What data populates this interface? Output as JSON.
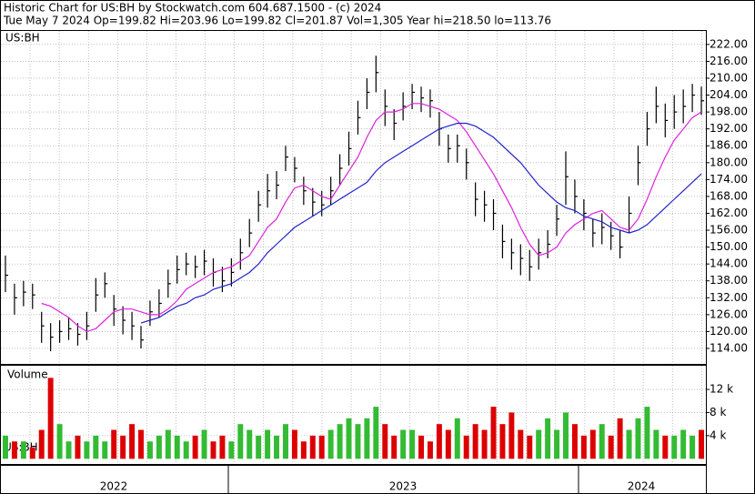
{
  "chart_data": {
    "type": "ohlc",
    "header": [
      "Historic Chart for US:BH by Stockwatch.com 604.687.1500 - (c) 2024",
      "Tue May  7 2024  Op=199.82  Hi=203.96  Lo=199.82  Cl=201.87  Vol=1,305  Year hi=218.50  lo=113.76"
    ],
    "symbol": "US:BH",
    "volume_label": "Volume",
    "x_labels": [
      "2022",
      "2023",
      "2024"
    ],
    "bar_color": "#000000",
    "up_color": "#33bb33",
    "down_color": "#dd0000",
    "grid": true,
    "high": [
      147,
      137,
      138,
      137,
      127,
      123,
      124,
      125,
      123,
      127,
      139,
      141,
      133,
      129,
      127,
      122,
      131,
      135,
      142,
      147,
      148,
      147,
      149,
      146,
      143,
      146,
      153,
      160,
      170,
      176,
      177,
      186,
      182,
      175,
      171,
      170,
      175,
      183,
      191,
      202,
      210,
      218,
      206,
      199,
      205,
      208,
      207,
      206,
      198,
      190,
      190,
      185,
      173,
      170,
      167,
      158,
      153,
      151,
      149,
      153,
      156,
      165,
      184,
      174,
      167,
      160,
      162,
      159,
      156,
      168,
      186,
      198,
      207,
      201,
      204,
      206,
      208,
      207
    ],
    "low": [
      134,
      126,
      129,
      128,
      116,
      113,
      116,
      117,
      115,
      117,
      127,
      132,
      122,
      119,
      117,
      114,
      122,
      125,
      132,
      137,
      140,
      139,
      140,
      136,
      134,
      136,
      142,
      150,
      159,
      164,
      167,
      177,
      173,
      165,
      161,
      161,
      165,
      172,
      179,
      190,
      199,
      205,
      193,
      188,
      195,
      199,
      198,
      196,
      186,
      180,
      180,
      174,
      161,
      159,
      156,
      146,
      142,
      140,
      138,
      142,
      146,
      154,
      165,
      162,
      156,
      150,
      151,
      149,
      146,
      155,
      172,
      186,
      194,
      189,
      192,
      194,
      198,
      197
    ],
    "close": [
      140,
      132,
      134,
      133,
      122,
      118,
      120,
      121,
      119,
      122,
      133,
      137,
      128,
      124,
      122,
      117,
      127,
      130,
      137,
      142,
      144,
      143,
      145,
      141,
      138,
      141,
      148,
      155,
      165,
      170,
      172,
      182,
      178,
      170,
      166,
      165,
      170,
      178,
      185,
      196,
      205,
      212,
      200,
      194,
      200,
      205,
      203,
      202,
      192,
      185,
      186,
      180,
      167,
      165,
      162,
      152,
      148,
      146,
      143,
      148,
      151,
      160,
      175,
      168,
      162,
      155,
      157,
      154,
      150,
      162,
      180,
      192,
      200,
      195,
      198,
      200,
      204,
      202
    ],
    "lines": [
      {
        "color": "#dd22dd",
        "values": [
          null,
          null,
          null,
          null,
          130,
          129,
          127,
          125,
          122,
          120,
          121,
          124,
          127,
          128,
          128,
          127,
          126,
          126,
          128,
          131,
          135,
          137,
          139,
          141,
          142,
          143,
          145,
          147,
          152,
          157,
          160,
          166,
          171,
          172,
          170,
          168,
          167,
          172,
          177,
          182,
          189,
          195,
          198,
          198,
          199,
          201,
          201,
          200,
          199,
          197,
          195,
          191,
          186,
          181,
          176,
          170,
          164,
          157,
          151,
          147,
          148,
          150,
          155,
          158,
          160,
          162,
          163,
          160,
          157,
          156,
          160,
          167,
          175,
          182,
          188,
          192,
          196,
          198
        ]
      },
      {
        "color": "#2222cc",
        "values": [
          null,
          null,
          null,
          null,
          null,
          null,
          null,
          null,
          null,
          null,
          null,
          null,
          null,
          null,
          null,
          123,
          124,
          125,
          127,
          129,
          130,
          132,
          133,
          135,
          136,
          137,
          139,
          141,
          144,
          148,
          151,
          154,
          157,
          159,
          161,
          163,
          165,
          167,
          169,
          171,
          173,
          177,
          180,
          182,
          184,
          186,
          188,
          190,
          192,
          193,
          194,
          194,
          193,
          191,
          189,
          186,
          183,
          180,
          176,
          172,
          169,
          166,
          164,
          163,
          161,
          160,
          159,
          157,
          156,
          155,
          156,
          158,
          161,
          164,
          167,
          170,
          173,
          176
        ]
      }
    ],
    "ylim": [
      108.5,
      226.8
    ],
    "yticks": [
      {
        "value": 114,
        "label": "114.00"
      },
      {
        "value": 120,
        "label": "120.00"
      },
      {
        "value": 126,
        "label": "126.00"
      },
      {
        "value": 132,
        "label": "132.00"
      },
      {
        "value": 138,
        "label": "138.00"
      },
      {
        "value": 144,
        "label": "144.00"
      },
      {
        "value": 150,
        "label": "150.00"
      },
      {
        "value": 156,
        "label": "156.00"
      },
      {
        "value": 162,
        "label": "162.00"
      },
      {
        "value": 168,
        "label": "168.00"
      },
      {
        "value": 174,
        "label": "174.00"
      },
      {
        "value": 180,
        "label": "180.00"
      },
      {
        "value": 186,
        "label": "186.00"
      },
      {
        "value": 192,
        "label": "192.00"
      },
      {
        "value": 198,
        "label": "198.00"
      },
      {
        "value": 204,
        "label": "204.00"
      },
      {
        "value": 210,
        "label": "210.00"
      },
      {
        "value": 216,
        "label": "216.00"
      },
      {
        "value": 222,
        "label": "222.00"
      }
    ],
    "volume": [
      4,
      3,
      3,
      2,
      5,
      14,
      6,
      3,
      4,
      3,
      4,
      3,
      5,
      4,
      6,
      5,
      3,
      4,
      5,
      4,
      3,
      4,
      5,
      3,
      4,
      3,
      6,
      5,
      4,
      5,
      4,
      6,
      5,
      3,
      4,
      4,
      5,
      6,
      7,
      6,
      7,
      9,
      6,
      4,
      5,
      5,
      4,
      3,
      6,
      5,
      7,
      4,
      6,
      5,
      9,
      6,
      8,
      5,
      4,
      5,
      7,
      5,
      8,
      6,
      4,
      5,
      6,
      4,
      7,
      5,
      7,
      9,
      5,
      4,
      4,
      5,
      4,
      5
    ],
    "vlim": [
      -0.9,
      16.1
    ],
    "vticks": [
      {
        "value": 4,
        "label": "4 k"
      },
      {
        "value": 8,
        "label": "8 k"
      },
      {
        "value": 12,
        "label": "12 k"
      }
    ]
  }
}
